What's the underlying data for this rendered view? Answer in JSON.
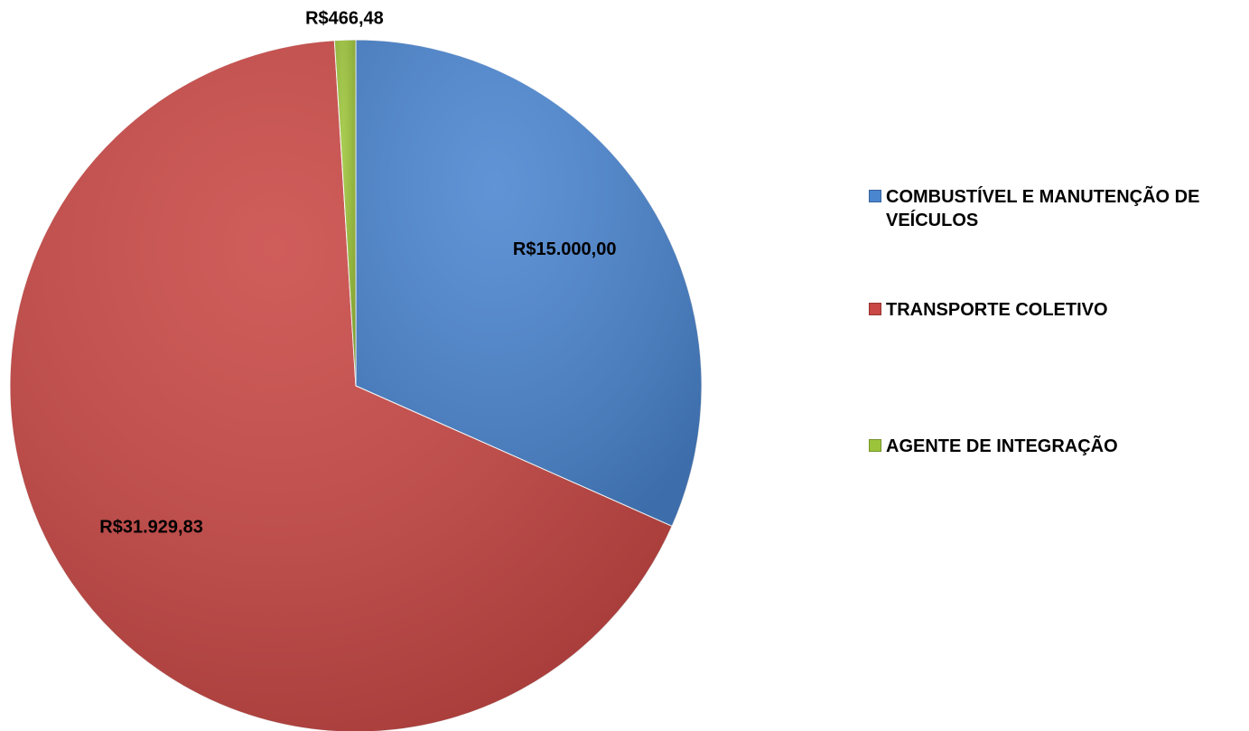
{
  "chart_data": {
    "type": "pie",
    "categories": [
      "COMBUSTÍVEL E MANUTENÇÃO DE VEÍCULOS",
      "TRANSPORTE COLETIVO",
      "AGENTE DE INTEGRAÇÃO"
    ],
    "values": [
      15000,
      31929.83,
      466.48
    ],
    "value_labels": [
      "R$15.000,00",
      "R$31.929,83",
      "R$466,48"
    ],
    "colors": [
      "#4a85d0",
      "#c94744",
      "#9cc43a"
    ],
    "legend": "right"
  }
}
